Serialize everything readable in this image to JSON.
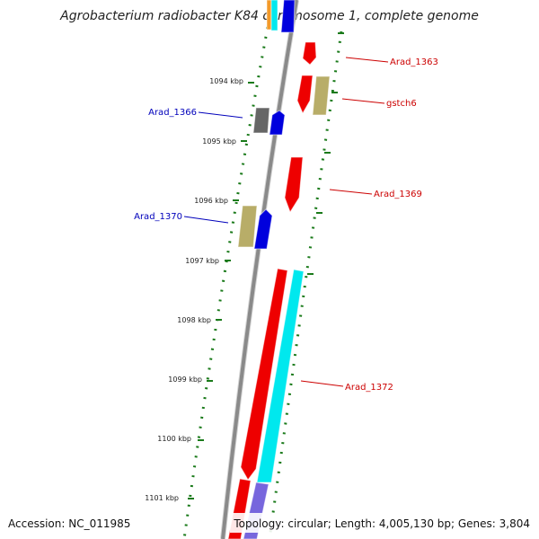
{
  "title": "Agrobacterium radiobacter K84 chromosome 1, complete genome",
  "footer": {
    "accession": "Accession: NC_011985",
    "topology": "Topology: circular; Length: 4,005,130 bp; Genes: 3,804"
  },
  "ticks": [
    "1094 kbp",
    "1095 kbp",
    "1096 kbp",
    "1097 kbp",
    "1098 kbp",
    "1099 kbp",
    "1100 kbp",
    "1101 kbp"
  ],
  "gene_labels": [
    "Arad_1363",
    "gstch6",
    "Arad_1366",
    "Arad_1369",
    "Arad_1370",
    "Arad_1372"
  ],
  "colors": {
    "backbone": "#8a8a8a",
    "dots": "#1a7a1a",
    "cds_red": "#ee0000",
    "cds_blue": "#0000dd",
    "cds_khaki": "#b8ad68",
    "cds_gray": "#666666",
    "cds_cyan": "#00e8ee",
    "cds_purple": "#7766dd",
    "label_red": "#cc0000",
    "label_blue": "#0000bb"
  }
}
